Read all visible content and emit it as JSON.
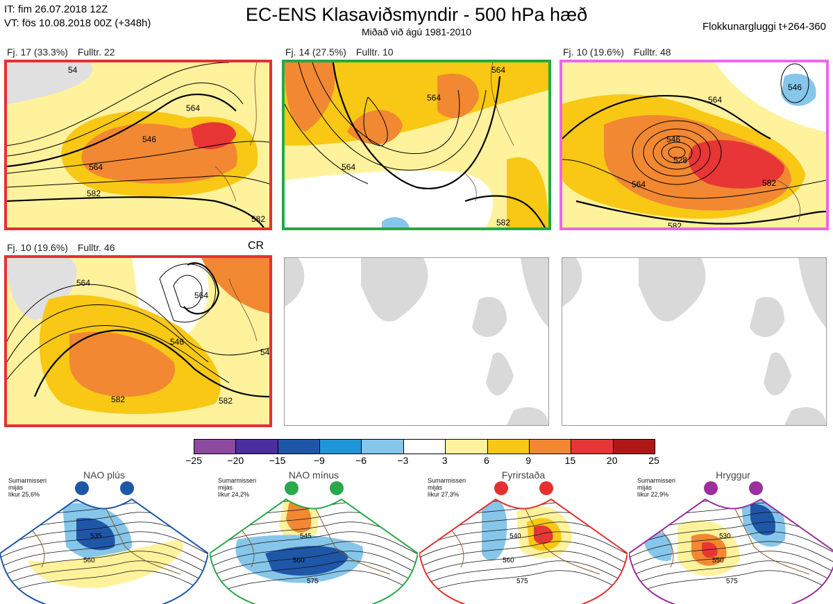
{
  "header": {
    "it": "IT: fim 26.07.2018 12Z",
    "vt": "VT: fös 10.08.2018 00Z  (+348h)",
    "title": "EC-ENS Klasaviðsmyndir - 500 hPa hæð",
    "subtitle": "Miðað við ágú 1981-2010",
    "window": "Flokkunargluggi t+264-360"
  },
  "clusters": [
    {
      "label": "Fj. 17 (33.3%)",
      "rep": "Fulltr. 22",
      "border": "#e53030",
      "contour_labels": [
        "564",
        "546",
        "564",
        "582",
        "582",
        "54"
      ]
    },
    {
      "label": "Fj. 14 (27.5%)",
      "rep": "Fulltr. 10",
      "border": "#22aa44",
      "contour_labels": [
        "564",
        "564",
        "564",
        "582"
      ]
    },
    {
      "label": "Fj. 10 (19.6%)",
      "rep": "Fulltr. 48",
      "border": "#ee66ee",
      "contour_labels": [
        "546",
        "564",
        "546",
        "528",
        "564",
        "582",
        "582"
      ]
    },
    {
      "label": "Fj. 10 (19.6%)",
      "rep": "Fulltr. 46",
      "border": "#e53030",
      "contour_labels": [
        "564",
        "546",
        "564",
        "582",
        "582",
        "54"
      ]
    }
  ],
  "cr_label": "CR",
  "colorbar": {
    "colors": [
      "#8e4a9e",
      "#4a2f9e",
      "#1f57a8",
      "#1f96d8",
      "#86c6ea",
      "#ffffff",
      "#fff29c",
      "#f8c815",
      "#f28832",
      "#e83535",
      "#b01818"
    ],
    "ticks": [
      "−25",
      "−20",
      "−15",
      "−9",
      "−6",
      "−3",
      "3",
      "6",
      "9",
      "15",
      "20",
      "25"
    ]
  },
  "regimes": [
    {
      "title": "NAO plús",
      "note": [
        "Sumarmisseri",
        "mijás",
        "líkur 25,6%"
      ],
      "color": "#1f57a8",
      "labels": [
        "535",
        "560"
      ]
    },
    {
      "title": "NAO mínus",
      "note": [
        "Sumarmisseri",
        "mijás",
        "líkur 24,2%"
      ],
      "color": "#2aa84a",
      "labels": [
        "545",
        "560",
        "575"
      ]
    },
    {
      "title": "Fyrirstaða",
      "note": [
        "Sumarmisseri",
        "mijás",
        "líkur 27,3%"
      ],
      "color": "#e53030",
      "labels": [
        "540",
        "560",
        "575"
      ]
    },
    {
      "title": "Hryggur",
      "note": [
        "Sumarmisseri",
        "mijás",
        "líkur 22,9%"
      ],
      "color": "#9b2f9b",
      "labels": [
        "530",
        "550",
        "575"
      ]
    }
  ]
}
